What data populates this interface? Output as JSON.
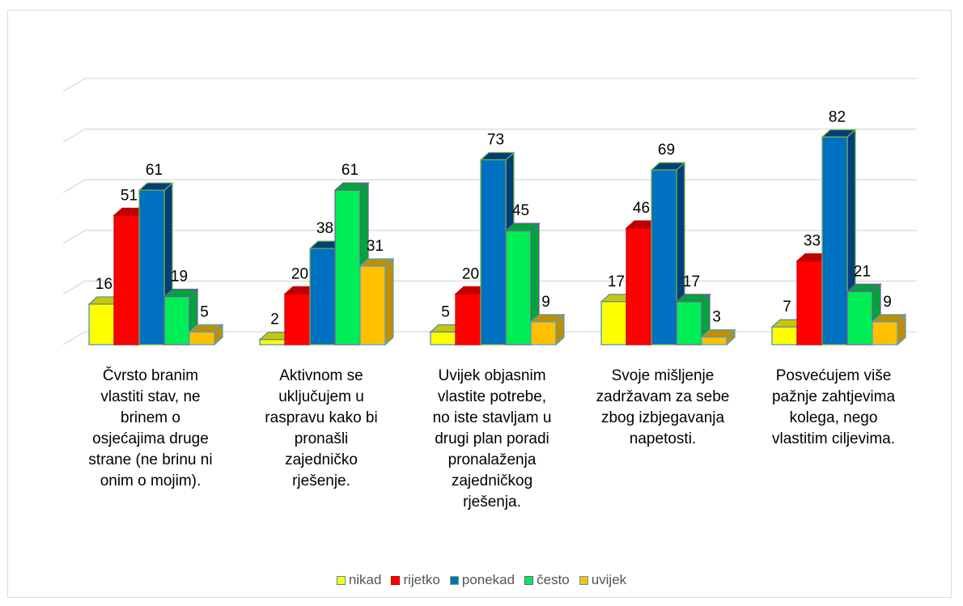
{
  "chart_data": {
    "type": "bar",
    "categories": [
      "Čvrsto branim\nvlastiti stav, ne\nbrinem o\nosjećajima druge\nstrane (ne brinu ni\nonim o mojim).",
      "Aktivnom se\nuključujem u\nraspravu kako bi\npronašli\nzajedničko\nrješenje.",
      "Uvijek objasnim\nvlastite potrebe,\nno iste stavljam u\ndrugi plan poradi\npronalaženja\nzajedničkog\nrješenja.",
      "Svoje mišljenje\nzadržavam za sebe\nzbog izbjegavanja\nnapetosti.",
      "Posvećujem više\npažnje zahtjevima\nkolega, nego\nvlastitim ciljevima."
    ],
    "series": [
      {
        "name": "nikad",
        "values": [
          16,
          2,
          5,
          17,
          7
        ],
        "color": "#ffff00",
        "side": "#c8c800",
        "border": "#4a86c5"
      },
      {
        "name": "rijetko",
        "values": [
          51,
          20,
          20,
          46,
          33
        ],
        "color": "#ff0000",
        "side": "#c00000",
        "border": "#c00000"
      },
      {
        "name": "ponekad",
        "values": [
          61,
          38,
          73,
          69,
          82
        ],
        "color": "#0070c0",
        "side": "#003f7a",
        "border": "#7cb342"
      },
      {
        "name": "često",
        "values": [
          19,
          61,
          45,
          17,
          21
        ],
        "color": "#00ee55",
        "side": "#00a53a",
        "border": "#7b4fa0"
      },
      {
        "name": "uvijek",
        "values": [
          5,
          31,
          9,
          3,
          9
        ],
        "color": "#ffc000",
        "side": "#c08f00",
        "border": "#4a9ed8"
      }
    ],
    "ylim": [
      0,
      100
    ],
    "grid": true,
    "legend": "bottom"
  }
}
